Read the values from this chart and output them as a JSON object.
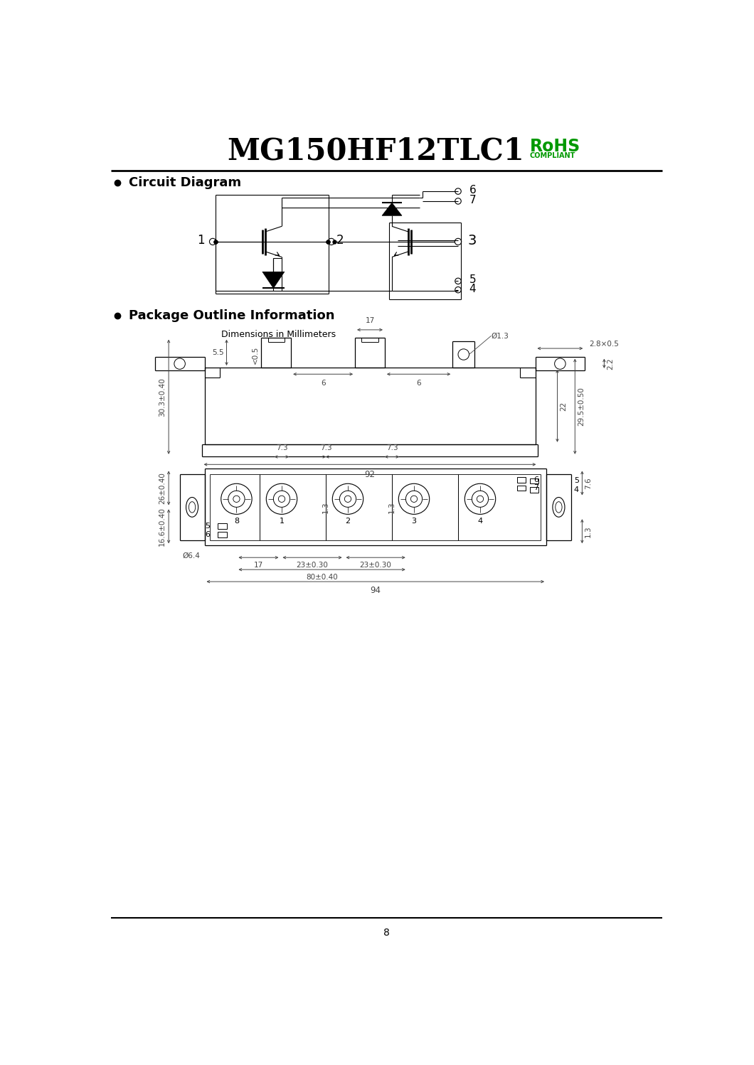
{
  "title": "MG150HF12TLC1",
  "rohs_text": "RoHS",
  "compliant_text": "COMPLIANT",
  "section1": "Circuit Diagram",
  "section2": "Package Outline Information",
  "dim_text": "Dimensions in Millimeters",
  "page_num": "8",
  "bg_color": "#ffffff",
  "line_color": "#000000",
  "dim_color": "#444444",
  "green_color": "#009900",
  "title_fontsize": 30,
  "section_fontsize": 13
}
